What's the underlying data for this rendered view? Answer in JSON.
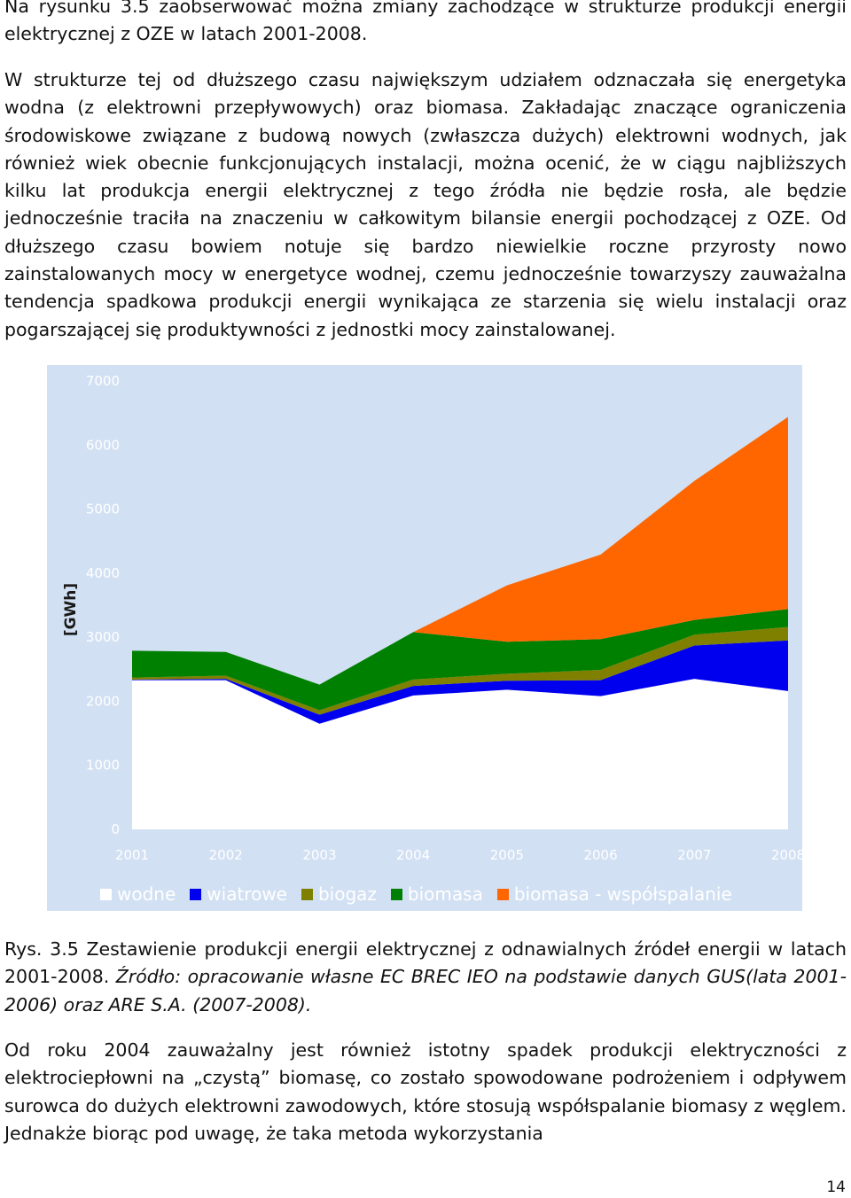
{
  "paragraphs": {
    "p1": "Na rysunku 3.5 zaobserwować można zmiany zachodzące w strukturze produkcji energii elektrycznej z OZE w latach 2001-2008.",
    "p2": "W strukturze tej od dłuższego czasu największym udziałem odznaczała się energetyka wodna (z elektrowni przepływowych) oraz biomasa. Zakładając znaczące ograniczenia środowiskowe związane z budową nowych (zwłaszcza dużych) elektrowni wodnych, jak również wiek obecnie funkcjonujących instalacji, można ocenić, że w ciągu najbliższych kilku lat produkcja energii elektrycznej z tego źródła nie będzie rosła, ale będzie jednocześnie traciła na znaczeniu w całkowitym bilansie energii pochodzącej z OZE. Od dłuższego czasu bowiem notuje się bardzo niewielkie roczne przyrosty nowo zainstalowanych mocy w energetyce wodnej, czemu jednocześnie towarzyszy zauważalna tendencja spadkowa produkcji energii wynikająca ze starzenia się wielu instalacji oraz pogarszającej się produktywności z jednostki mocy zainstalowanej.",
    "p3": "Od roku 2004 zauważalny jest również istotny spadek produkcji elektryczności z elektrociepłowni na „czystą” biomasę, co zostało spowodowane podrożeniem i odpływem surowca do dużych elektrowni zawodowych, które stosują współspalanie biomasy z węglem. Jednakże biorąc pod uwagę, że taka metoda wykorzystania"
  },
  "caption": {
    "main": "Rys. 3.5 Zestawienie produkcji energii elektrycznej z odnawialnych źródeł energii w latach 2001-2008. ",
    "source": "Źródło: opracowanie własne EC BREC IEO na podstawie danych GUS(lata 2001-2006) oraz ARE S.A. (2007-2008)."
  },
  "page_number": "14",
  "chart_data": {
    "type": "area",
    "stacked": true,
    "ylabel": "[GWh]",
    "ylim": [
      0,
      7000
    ],
    "yticks": [
      "0",
      "1000",
      "2000",
      "3000",
      "4000",
      "5000",
      "6000",
      "7000"
    ],
    "x": [
      "2001",
      "2002",
      "2003",
      "2004",
      "2005",
      "2006",
      "2007",
      "2008"
    ],
    "grid": false,
    "legend_position": "bottom",
    "series": [
      {
        "name": "wodne",
        "color": "#ffffff",
        "values": [
          2330,
          2330,
          1650,
          2090,
          2180,
          2080,
          2350,
          2160
        ]
      },
      {
        "name": "wiatrowe",
        "color": "#0000ee",
        "values": [
          10,
          20,
          140,
          150,
          140,
          250,
          520,
          790
        ]
      },
      {
        "name": "biogaz",
        "color": "#808000",
        "values": [
          30,
          50,
          70,
          100,
          110,
          160,
          170,
          210
        ]
      },
      {
        "name": "biomasa",
        "color": "#008000",
        "values": [
          420,
          370,
          400,
          740,
          500,
          480,
          230,
          280
        ]
      },
      {
        "name": "biomasa - współspalanie",
        "color": "#ff6600",
        "values": [
          0,
          0,
          0,
          0,
          880,
          1320,
          2170,
          3000
        ]
      }
    ]
  }
}
